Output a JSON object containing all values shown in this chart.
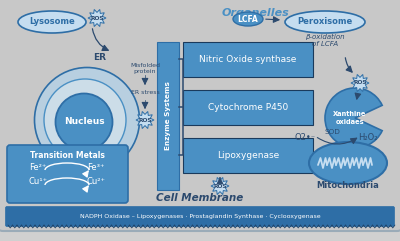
{
  "bg_color": "#d0d0d0",
  "blue_dark": "#2e6ea6",
  "blue_mid": "#4a90c4",
  "blue_light": "#7ab3d4",
  "blue_lightest": "#c5ddf0",
  "blue_cell": "#b8cfe0",
  "text_dark": "#2c4a6e",
  "text_white": "#ffffff",
  "organelles_label": "Organelles",
  "enzyme_label": "Enzyme Systems",
  "cell_membrane_label": "Cell Membrane",
  "bottom_bar_text": "NADPH Oxidase – Lipoxygenases · Prostaglandin Synthase · Cyclooxygenase",
  "lysosome_label": "Lysosome",
  "er_label": "ER",
  "nucleus_label": "Nucleus",
  "transition_metals_label": "Transition Metals",
  "fe2_label": "Fe²⁺",
  "fe3_label": "Fe³⁺",
  "cu1_label": "Cu¹⁺",
  "cu2_label": "Cu²⁺",
  "misfolded_label": "Misfolded\nprotein",
  "er_stress_label": "ER stress",
  "nitric_oxide_label": "Nitric Oxide synthase",
  "cytochrome_label": "Cytochrome P450",
  "lipox_label": "Lipoxygenase",
  "peroxisome_label": "Peroxisome",
  "beta_ox_label": "β-oxidation\nof LCFA",
  "lcfa_label": "LCFA",
  "xanthine_label": "Xanthine\noxidaes",
  "o2_label": "O2•⁻",
  "h2o2_label": "H₂O₂",
  "sod_label": "SOD",
  "mito_label": "Mitochondria",
  "figsize": [
    4.0,
    2.41
  ],
  "dpi": 100
}
